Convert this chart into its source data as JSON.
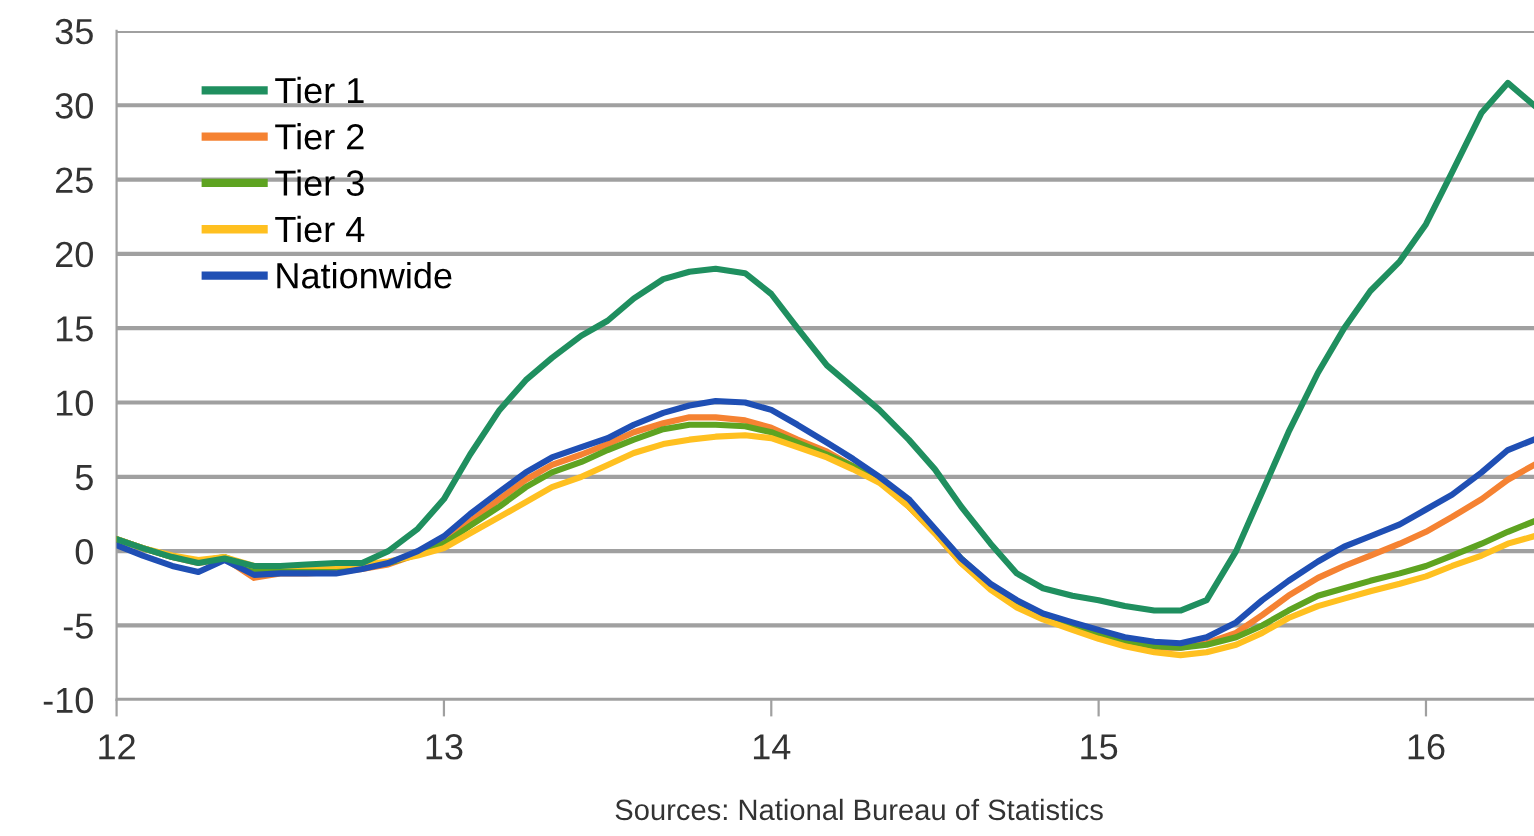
{
  "chart_data": {
    "type": "line",
    "x": [
      12,
      12.08,
      12.17,
      12.25,
      12.33,
      12.42,
      12.5,
      12.58,
      12.67,
      12.75,
      12.83,
      12.92,
      13,
      13.08,
      13.17,
      13.25,
      13.33,
      13.42,
      13.5,
      13.58,
      13.67,
      13.75,
      13.83,
      13.92,
      14,
      14.08,
      14.17,
      14.25,
      14.33,
      14.42,
      14.5,
      14.58,
      14.67,
      14.75,
      14.83,
      14.92,
      15,
      15.08,
      15.17,
      15.25,
      15.33,
      15.42,
      15.5,
      15.58,
      15.67,
      15.75,
      15.83,
      15.92,
      16,
      16.08,
      16.17,
      16.25,
      16.33
    ],
    "series": [
      {
        "name": "Tier 1",
        "color": "#1f8f5f",
        "values": [
          0.8,
          0.2,
          -0.4,
          -0.8,
          -0.5,
          -1,
          -1,
          -0.9,
          -0.8,
          -0.8,
          0,
          1.5,
          3.5,
          6.5,
          9.5,
          11.5,
          13,
          14.5,
          15.5,
          17,
          18.3,
          18.8,
          19,
          18.7,
          17.3,
          15,
          12.5,
          11,
          9.5,
          7.5,
          5.5,
          3,
          0.5,
          -1.5,
          -2.5,
          -3,
          -3.3,
          -3.7,
          -4,
          -4,
          -3.3,
          0,
          4,
          8,
          12,
          15,
          17.5,
          19.5,
          22,
          25.5,
          29.5,
          31.5,
          30
        ]
      },
      {
        "name": "Tier 2",
        "color": "#f58232",
        "values": [
          0.8,
          0.2,
          -0.4,
          -0.8,
          -0.5,
          -1.8,
          -1.5,
          -1.5,
          -1.4,
          -1.2,
          -0.9,
          -0.2,
          0.7,
          2,
          3.5,
          4.8,
          5.8,
          6.5,
          7.2,
          8,
          8.6,
          9,
          9,
          8.8,
          8.3,
          7.5,
          6.7,
          5.7,
          4.7,
          3,
          1.2,
          -0.8,
          -2.5,
          -3.6,
          -4.5,
          -5.2,
          -5.7,
          -6.2,
          -6.5,
          -6.5,
          -6.2,
          -5.5,
          -4.3,
          -3,
          -1.8,
          -1,
          -0.3,
          0.5,
          1.3,
          2.3,
          3.5,
          4.8,
          5.8
        ]
      },
      {
        "name": "Tier 3",
        "color": "#5ea321",
        "values": [
          0.8,
          0.2,
          -0.4,
          -0.7,
          -0.4,
          -1.2,
          -1.2,
          -1.2,
          -1.1,
          -1,
          -0.8,
          -0.2,
          0.5,
          1.7,
          3,
          4.3,
          5.3,
          6,
          6.8,
          7.5,
          8.2,
          8.5,
          8.5,
          8.4,
          8,
          7.3,
          6.5,
          5.7,
          4.8,
          3.2,
          1.4,
          -0.5,
          -2.3,
          -3.4,
          -4.3,
          -5,
          -5.6,
          -6,
          -6.4,
          -6.5,
          -6.3,
          -5.8,
          -5,
          -4,
          -3,
          -2.5,
          -2,
          -1.5,
          -1,
          -0.3,
          0.5,
          1.3,
          2
        ]
      },
      {
        "name": "Tier 4",
        "color": "#ffc020",
        "values": [
          0.8,
          0.2,
          -0.3,
          -0.6,
          -0.4,
          -1,
          -1,
          -1,
          -1,
          -0.9,
          -0.7,
          -0.3,
          0.2,
          1.2,
          2.3,
          3.3,
          4.3,
          5,
          5.8,
          6.6,
          7.2,
          7.5,
          7.7,
          7.8,
          7.6,
          7,
          6.3,
          5.5,
          4.6,
          3,
          1.2,
          -0.8,
          -2.6,
          -3.8,
          -4.6,
          -5.3,
          -5.9,
          -6.4,
          -6.8,
          -7,
          -6.8,
          -6.3,
          -5.5,
          -4.5,
          -3.7,
          -3.2,
          -2.7,
          -2.2,
          -1.7,
          -1,
          -0.3,
          0.5,
          1
        ]
      },
      {
        "name": "Nationwide",
        "color": "#1f4fb4",
        "values": [
          0.4,
          -0.3,
          -1,
          -1.4,
          -0.6,
          -1.6,
          -1.5,
          -1.5,
          -1.5,
          -1.2,
          -0.8,
          0,
          1,
          2.5,
          4,
          5.3,
          6.3,
          7,
          7.6,
          8.5,
          9.3,
          9.8,
          10.1,
          10,
          9.5,
          8.5,
          7.3,
          6.2,
          5,
          3.5,
          1.5,
          -0.5,
          -2.2,
          -3.3,
          -4.2,
          -4.8,
          -5.3,
          -5.8,
          -6.1,
          -6.2,
          -5.8,
          -4.8,
          -3.3,
          -2,
          -0.7,
          0.3,
          1,
          1.8,
          2.8,
          3.8,
          5.3,
          6.8,
          7.5
        ]
      }
    ],
    "xlim": [
      12,
      16.33
    ],
    "xticks": [
      12,
      13,
      14,
      15,
      16
    ],
    "ylim": [
      -10,
      35
    ],
    "yticks": [
      -10,
      -5,
      0,
      5,
      10,
      15,
      20,
      25,
      30,
      35
    ],
    "grid": "y",
    "legend": "top left",
    "marker": "none",
    "line_style": "solid",
    "annotations": [
      "Sources: National Bureau of Statistics"
    ]
  }
}
